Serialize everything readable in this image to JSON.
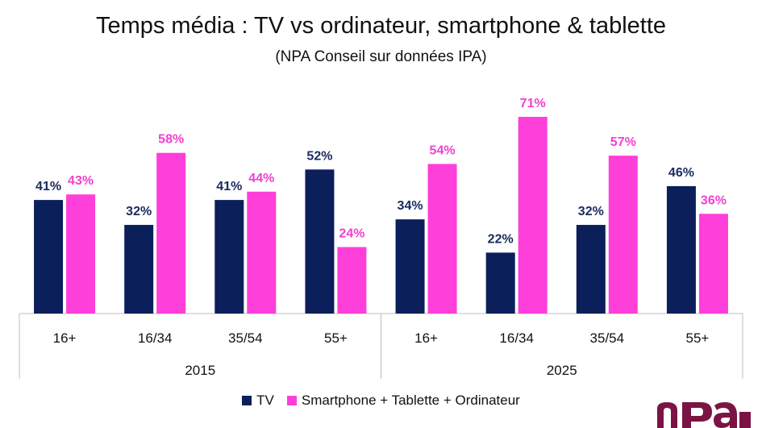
{
  "chart_data": {
    "type": "bar",
    "title": "Temps média : TV vs ordinateur, smartphone & tablette",
    "subtitle": "(NPA Conseil sur données IPA)",
    "groups": [
      {
        "name": "2015",
        "categories": [
          "16+",
          "16/34",
          "35/54",
          "55+"
        ]
      },
      {
        "name": "2025",
        "categories": [
          "16+",
          "16/34",
          "35/54",
          "55+"
        ]
      }
    ],
    "series": [
      {
        "name": "TV",
        "color": "#0b1f5b",
        "labels": [
          "41%",
          "32%",
          "41%",
          "52%",
          "34%",
          "22%",
          "32%",
          "46%"
        ],
        "values": [
          41,
          32,
          41,
          52,
          34,
          22,
          32,
          46
        ]
      },
      {
        "name": "Smartphone + Tablette + Ordinateur",
        "color": "#fe3fd9",
        "labels": [
          "43%",
          "58%",
          "44%",
          "24%",
          "54%",
          "71%",
          "57%",
          "36%"
        ],
        "values": [
          43,
          58,
          44,
          24,
          54,
          71,
          57,
          36
        ]
      }
    ],
    "ylim": [
      0,
      71
    ],
    "grid": false,
    "legend_position": "bottom"
  },
  "logo": {
    "name": "npa-logo",
    "color": "#7b1444"
  }
}
